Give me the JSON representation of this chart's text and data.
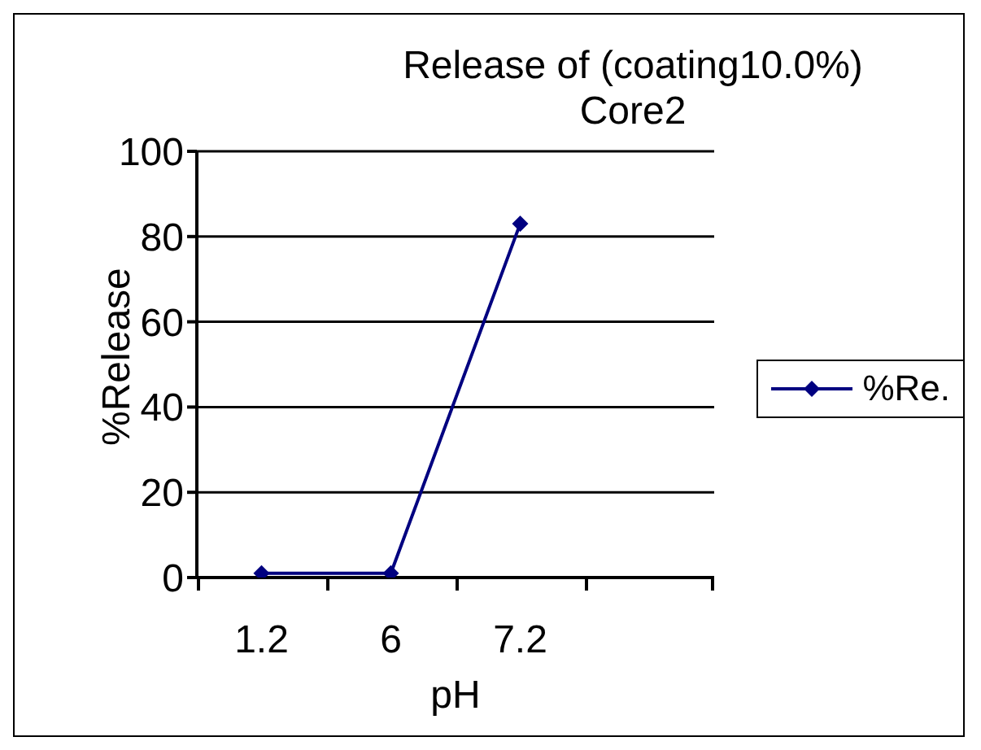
{
  "chart_data": {
    "type": "line",
    "title": "Release of (coating10.0%) Core2",
    "xlabel": "pH",
    "ylabel": "%Release",
    "categories": [
      "1.2",
      "6",
      "7.2",
      null
    ],
    "series": [
      {
        "name": "%Re.",
        "color": "#000080",
        "values": [
          1,
          1,
          83,
          null
        ]
      }
    ],
    "ylim": [
      0,
      100
    ],
    "yticks": [
      0,
      20,
      40,
      60,
      80,
      100
    ],
    "grid": "y",
    "legend": "right",
    "marker": "diamond",
    "line_style": "solid"
  }
}
